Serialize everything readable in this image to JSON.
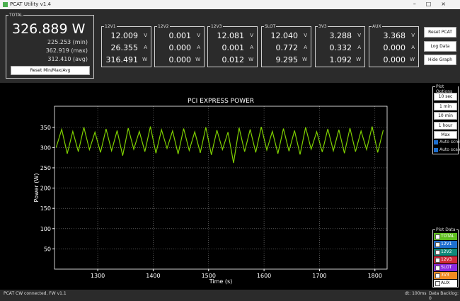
{
  "window": {
    "title": "PCAT Utility v1.4"
  },
  "total": {
    "label": "TOTAL",
    "value": "326.889 W",
    "min": "225.253 (min)",
    "max": "362.919 (max)",
    "avg": "312.410 (avg)",
    "reset_button": "Reset Min/Max/Avg"
  },
  "channels": [
    {
      "name": "12V1",
      "rows": [
        [
          "12.009",
          "V"
        ],
        [
          "26.355",
          "A"
        ],
        [
          "316.491",
          "W"
        ]
      ]
    },
    {
      "name": "12V2",
      "rows": [
        [
          "0.001",
          "V"
        ],
        [
          "0.000",
          "A"
        ],
        [
          "0.000",
          "W"
        ]
      ]
    },
    {
      "name": "12V3",
      "rows": [
        [
          "12.081",
          "V"
        ],
        [
          "0.001",
          "A"
        ],
        [
          "0.012",
          "W"
        ]
      ]
    },
    {
      "name": "SLOT",
      "rows": [
        [
          "12.040",
          "V"
        ],
        [
          "0.772",
          "A"
        ],
        [
          "9.295",
          "W"
        ]
      ]
    },
    {
      "name": "3V3",
      "rows": [
        [
          "3.288",
          "V"
        ],
        [
          "0.332",
          "A"
        ],
        [
          "1.092",
          "W"
        ]
      ]
    },
    {
      "name": "AUX",
      "rows": [
        [
          "3.368",
          "V"
        ],
        [
          "0.000",
          "A"
        ],
        [
          "0.000",
          "W"
        ]
      ]
    }
  ],
  "buttons": [
    "Reset PCAT",
    "Log Data",
    "Hide Graph"
  ],
  "plot_options": {
    "label": "Plot Options",
    "buttons": [
      "10 sec",
      "1 min",
      "10 min",
      "1 hour",
      "Max"
    ],
    "checks": [
      "Auto scroll",
      "Auto scale"
    ]
  },
  "plot_data": {
    "label": "Plot Data",
    "items": [
      {
        "name": "TOTAL",
        "color": "#5fbf1f"
      },
      {
        "name": "12V1",
        "color": "#1e6fd0"
      },
      {
        "name": "12V2",
        "color": "#0f8a7a"
      },
      {
        "name": "12V3",
        "color": "#d02a3a"
      },
      {
        "name": "SLOT",
        "color": "#8a2be2"
      },
      {
        "name": "3V3",
        "color": "#f08a20"
      },
      {
        "name": "AUX",
        "color": "#ffffff"
      }
    ]
  },
  "status": {
    "left": "PCAT CW connected, FW v1.1",
    "dt": "dt: 100ms",
    "backlog": "Data Backlog: 0"
  },
  "chart_data": {
    "type": "line",
    "title": "PCI EXPRESS POWER",
    "x_label": "Time (s)",
    "y_label": "Power (W)",
    "xlim": [
      1222,
      1822
    ],
    "ylim": [
      0,
      402
    ],
    "xticks": [
      1300,
      1400,
      1500,
      1600,
      1700,
      1800
    ],
    "yticks": [
      50,
      100,
      150,
      200,
      250,
      300,
      350
    ],
    "grid": true,
    "series": [
      {
        "name": "TOTAL",
        "color": "#7fd000",
        "x": [
          1225,
          1235,
          1245,
          1255,
          1265,
          1275,
          1285,
          1295,
          1305,
          1315,
          1325,
          1335,
          1345,
          1355,
          1365,
          1375,
          1385,
          1395,
          1405,
          1415,
          1425,
          1435,
          1445,
          1455,
          1465,
          1475,
          1485,
          1495,
          1505,
          1515,
          1525,
          1535,
          1545,
          1555,
          1565,
          1575,
          1585,
          1595,
          1605,
          1615,
          1625,
          1635,
          1645,
          1655,
          1665,
          1675,
          1685,
          1695,
          1705,
          1715,
          1725,
          1735,
          1745,
          1755,
          1765,
          1775,
          1785,
          1795,
          1805,
          1815
        ],
        "values": [
          300,
          345,
          285,
          340,
          290,
          350,
          295,
          338,
          288,
          346,
          292,
          342,
          280,
          348,
          296,
          340,
          290,
          352,
          286,
          344,
          298,
          341,
          284,
          347,
          293,
          339,
          287,
          350,
          282,
          343,
          295,
          338,
          262,
          349,
          290,
          345,
          288,
          351,
          294,
          340,
          285,
          347,
          291,
          342,
          283,
          350,
          296,
          339,
          289,
          346,
          292,
          344,
          286,
          348,
          290,
          341,
          295,
          352,
          288,
          343
        ]
      }
    ]
  }
}
